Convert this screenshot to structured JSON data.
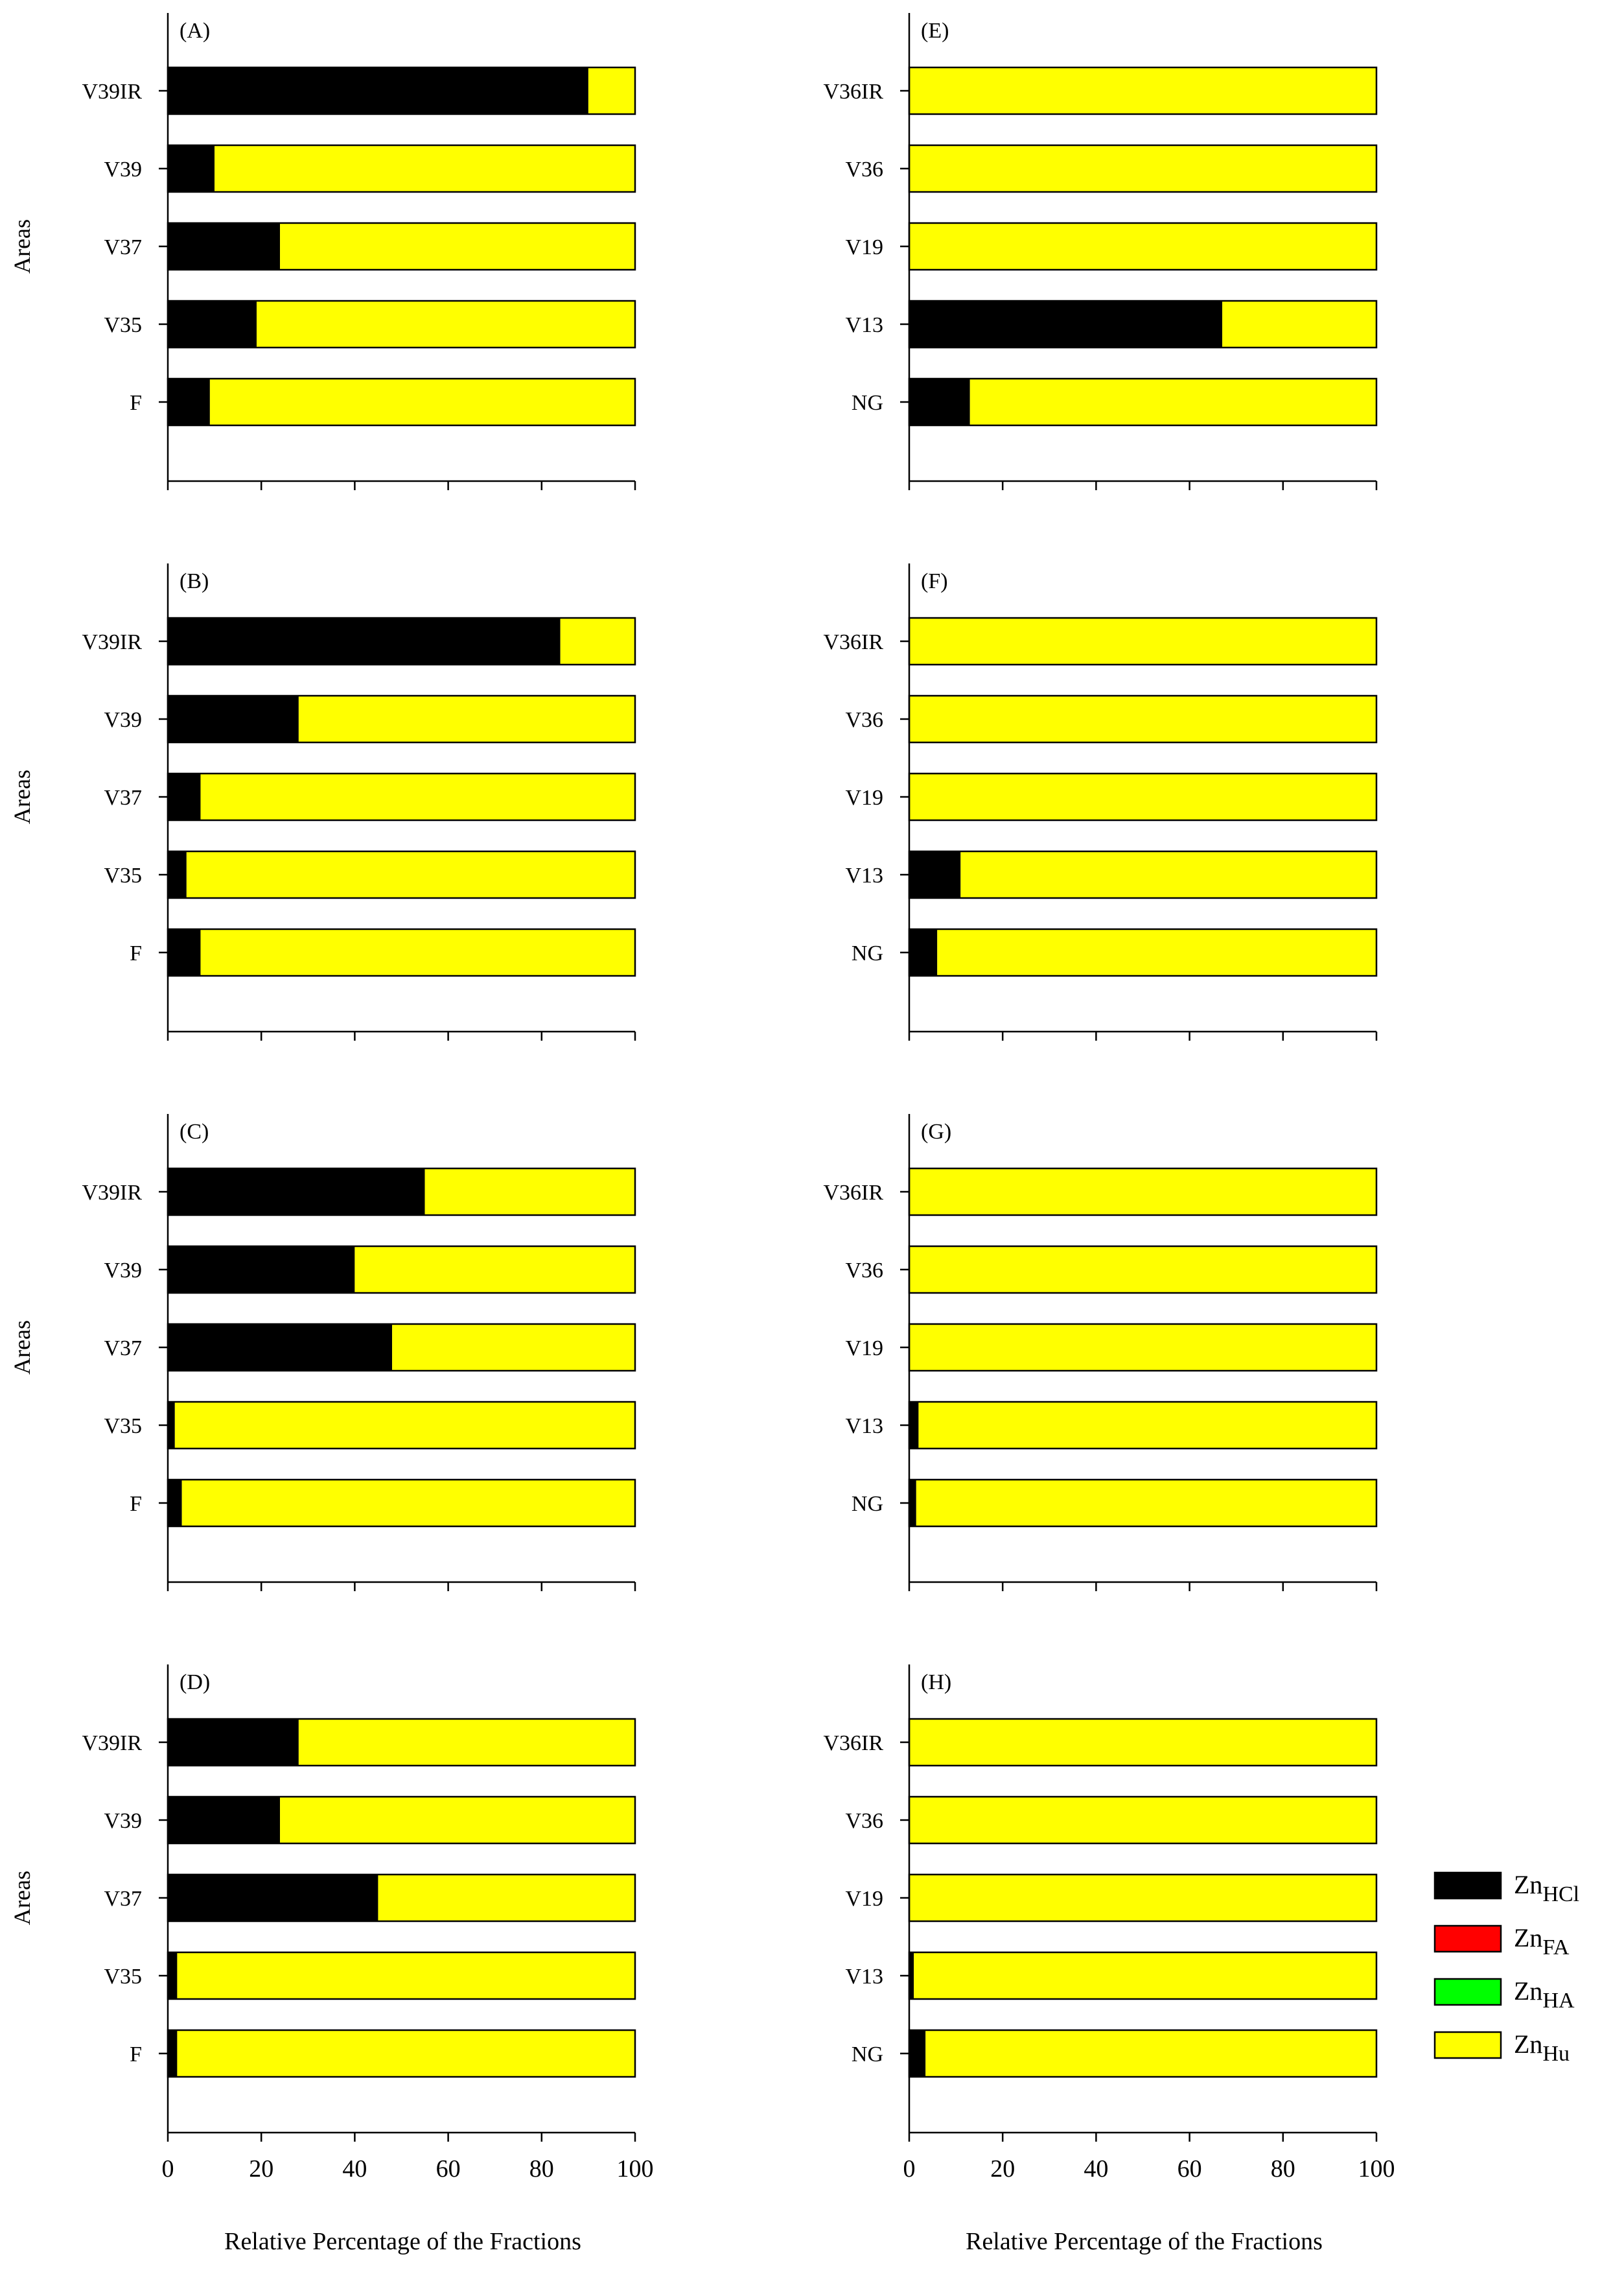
{
  "colors": {
    "ZnHCl": "#000000",
    "ZnFA": "#ff0000",
    "ZnHA": "#00ff00",
    "ZnHu": "#ffff00"
  },
  "legend": [
    {
      "key": "ZnHCl",
      "base": "Zn",
      "sub": "HCl"
    },
    {
      "key": "ZnFA",
      "base": "Zn",
      "sub": "FA"
    },
    {
      "key": "ZnHA",
      "base": "Zn",
      "sub": "HA"
    },
    {
      "key": "ZnHu",
      "base": "Zn",
      "sub": "Hu"
    }
  ],
  "chart_data": [
    {
      "panel": "(A)",
      "type": "bar",
      "orientation": "horizontal",
      "stacked": true,
      "ylabel": "Areas",
      "categories": [
        "V39IR",
        "V39",
        "V37",
        "V35",
        "F"
      ],
      "xlim": [
        0,
        100
      ],
      "series": [
        {
          "name": "ZnHCl",
          "values": [
            90,
            10,
            24,
            19,
            9
          ]
        },
        {
          "name": "ZnFA",
          "values": [
            0,
            0,
            0,
            0,
            0
          ]
        },
        {
          "name": "ZnHA",
          "values": [
            0,
            0,
            0,
            0,
            0
          ]
        },
        {
          "name": "ZnHu",
          "values": [
            10,
            90,
            76,
            81,
            91
          ]
        }
      ]
    },
    {
      "panel": "(B)",
      "type": "bar",
      "orientation": "horizontal",
      "stacked": true,
      "ylabel": "Areas",
      "categories": [
        "V39IR",
        "V39",
        "V37",
        "V35",
        "F"
      ],
      "xlim": [
        0,
        100
      ],
      "series": [
        {
          "name": "ZnHCl",
          "values": [
            84,
            28,
            7,
            4,
            7
          ]
        },
        {
          "name": "ZnFA",
          "values": [
            0,
            0,
            0,
            0,
            0
          ]
        },
        {
          "name": "ZnHA",
          "values": [
            0,
            0,
            0,
            0,
            0
          ]
        },
        {
          "name": "ZnHu",
          "values": [
            16,
            72,
            93,
            96,
            93
          ]
        }
      ]
    },
    {
      "panel": "(C)",
      "type": "bar",
      "orientation": "horizontal",
      "stacked": true,
      "ylabel": "Areas",
      "categories": [
        "V39IR",
        "V39",
        "V37",
        "V35",
        "F"
      ],
      "xlim": [
        0,
        100
      ],
      "series": [
        {
          "name": "ZnHCl",
          "values": [
            55,
            40,
            48,
            1.5,
            3
          ]
        },
        {
          "name": "ZnFA",
          "values": [
            0,
            0,
            0,
            0,
            0
          ]
        },
        {
          "name": "ZnHA",
          "values": [
            0,
            0,
            0,
            0,
            0
          ]
        },
        {
          "name": "ZnHu",
          "values": [
            45,
            60,
            52,
            98.5,
            97
          ]
        }
      ]
    },
    {
      "panel": "(D)",
      "type": "bar",
      "orientation": "horizontal",
      "stacked": true,
      "ylabel": "Areas",
      "categories": [
        "V39IR",
        "V39",
        "V37",
        "V35",
        "F"
      ],
      "xlim": [
        0,
        100
      ],
      "series": [
        {
          "name": "ZnHCl",
          "values": [
            28,
            24,
            45,
            2,
            2
          ]
        },
        {
          "name": "ZnFA",
          "values": [
            0,
            0,
            0,
            0,
            0
          ]
        },
        {
          "name": "ZnHA",
          "values": [
            0,
            0,
            0,
            0,
            0
          ]
        },
        {
          "name": "ZnHu",
          "values": [
            72,
            76,
            55,
            98,
            98
          ]
        }
      ],
      "xlabel": "Relative Percentage of the Fractions",
      "xticks": [
        "0",
        "20",
        "40",
        "60",
        "80",
        "100"
      ]
    },
    {
      "panel": "(E)",
      "type": "bar",
      "orientation": "horizontal",
      "stacked": true,
      "categories": [
        "V36IR",
        "V36",
        "V19",
        "V13",
        "NG"
      ],
      "xlim": [
        0,
        100
      ],
      "series": [
        {
          "name": "ZnHCl",
          "values": [
            0,
            0,
            0,
            67,
            13
          ]
        },
        {
          "name": "ZnFA",
          "values": [
            0,
            0,
            0,
            0,
            0
          ]
        },
        {
          "name": "ZnHA",
          "values": [
            0,
            0,
            0,
            0,
            0
          ]
        },
        {
          "name": "ZnHu",
          "values": [
            100,
            100,
            100,
            33,
            87
          ]
        }
      ]
    },
    {
      "panel": "(F)",
      "type": "bar",
      "orientation": "horizontal",
      "stacked": true,
      "categories": [
        "V36IR",
        "V36",
        "V19",
        "V13",
        "NG"
      ],
      "xlim": [
        0,
        100
      ],
      "series": [
        {
          "name": "ZnHCl",
          "values": [
            0,
            0,
            0,
            11,
            6
          ]
        },
        {
          "name": "ZnFA",
          "values": [
            0,
            0,
            0,
            0,
            0
          ]
        },
        {
          "name": "ZnHA",
          "values": [
            0,
            0,
            0,
            0,
            0
          ]
        },
        {
          "name": "ZnHu",
          "values": [
            100,
            100,
            100,
            89,
            94
          ]
        }
      ]
    },
    {
      "panel": "(G)",
      "type": "bar",
      "orientation": "horizontal",
      "stacked": true,
      "categories": [
        "V36IR",
        "V36",
        "V19",
        "V13",
        "NG"
      ],
      "xlim": [
        0,
        100
      ],
      "series": [
        {
          "name": "ZnHCl",
          "values": [
            0,
            0,
            0,
            2,
            1.5
          ]
        },
        {
          "name": "ZnFA",
          "values": [
            0,
            0,
            0,
            0,
            0
          ]
        },
        {
          "name": "ZnHA",
          "values": [
            0,
            0,
            0,
            0,
            0
          ]
        },
        {
          "name": "ZnHu",
          "values": [
            100,
            100,
            100,
            98,
            98.5
          ]
        }
      ]
    },
    {
      "panel": "(H)",
      "type": "bar",
      "orientation": "horizontal",
      "stacked": true,
      "categories": [
        "V36IR",
        "V36",
        "V19",
        "V13",
        "NG"
      ],
      "xlim": [
        0,
        100
      ],
      "series": [
        {
          "name": "ZnHCl",
          "values": [
            0,
            0,
            0,
            1,
            3.5
          ]
        },
        {
          "name": "ZnFA",
          "values": [
            0,
            0,
            0,
            0,
            0
          ]
        },
        {
          "name": "ZnHA",
          "values": [
            0,
            0,
            0,
            0,
            0
          ]
        },
        {
          "name": "ZnHu",
          "values": [
            100,
            100,
            100,
            99,
            96.5
          ]
        }
      ],
      "xlabel": "Relative Percentage of the Fractions",
      "xticks": [
        "0",
        "20",
        "40",
        "60",
        "80",
        "100"
      ]
    }
  ]
}
